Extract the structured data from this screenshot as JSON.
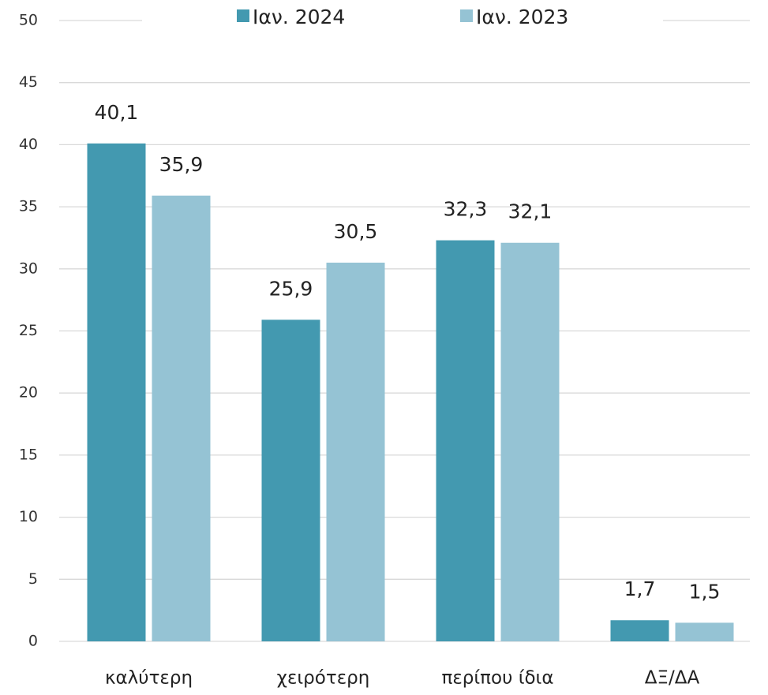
{
  "chart_data": {
    "type": "bar",
    "categories": [
      "καλύτερη",
      "χειρότερη",
      "περίπου ίδια",
      "ΔΞ/ΔΑ"
    ],
    "series": [
      {
        "name": "Ιαν. 2024",
        "color": "#4399b0",
        "values": [
          40.1,
          25.9,
          32.3,
          1.7
        ],
        "value_labels": [
          "40,1",
          "25,9",
          "32,3",
          "1,7"
        ]
      },
      {
        "name": "Ιαν. 2023",
        "color": "#95c3d4",
        "values": [
          35.9,
          30.5,
          32.1,
          1.5
        ],
        "value_labels": [
          "35,9",
          "30,5",
          "32,1",
          "1,5"
        ]
      }
    ],
    "ylim": [
      0,
      50
    ],
    "yticks": [
      0,
      5,
      10,
      15,
      20,
      25,
      30,
      35,
      40,
      45,
      50
    ],
    "grid": true,
    "legend": "top"
  }
}
